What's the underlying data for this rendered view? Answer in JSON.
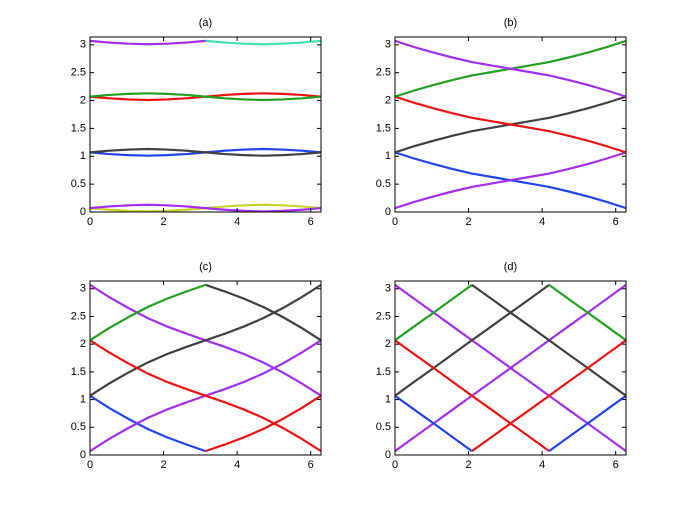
{
  "chart_data": [
    {
      "type": "line",
      "title": "(a)",
      "x": [
        0,
        0.52,
        1.05,
        1.57,
        2.09,
        2.62,
        3.14,
        3.67,
        4.19,
        4.71,
        5.24,
        5.76,
        6.28
      ],
      "xlim": [
        0,
        6.28
      ],
      "xticks": [
        0,
        2,
        4,
        6
      ],
      "ylim": [
        0,
        3.14
      ],
      "yticks": [
        0,
        0.5,
        1,
        1.5,
        2,
        2.5,
        3
      ],
      "series": [
        {
          "color": "#c8d42c",
          "values": [
            0.07,
            0.04,
            0.02,
            0.01,
            0.02,
            0.04,
            0.07,
            0.1,
            0.12,
            0.13,
            0.12,
            0.1,
            0.07
          ]
        },
        {
          "color": "#a030ee",
          "values": [
            0.07,
            0.1,
            0.12,
            0.13,
            0.12,
            0.1,
            0.07,
            0.04,
            0.02,
            0.01,
            0.02,
            0.04,
            0.07
          ]
        },
        {
          "color": "#2244ee",
          "values": [
            1.07,
            1.04,
            1.02,
            1.01,
            1.02,
            1.04,
            1.07,
            1.1,
            1.12,
            1.13,
            1.12,
            1.1,
            1.07
          ]
        },
        {
          "color": "#404040",
          "values": [
            1.07,
            1.1,
            1.12,
            1.13,
            1.12,
            1.1,
            1.07,
            1.04,
            1.02,
            1.01,
            1.02,
            1.04,
            1.07
          ]
        },
        {
          "color": "#ee1111",
          "values": [
            2.07,
            2.04,
            2.02,
            2.01,
            2.02,
            2.04,
            2.07,
            2.1,
            2.12,
            2.13,
            2.12,
            2.1,
            2.07
          ]
        },
        {
          "color": "#22a022",
          "values": [
            2.07,
            2.1,
            2.12,
            2.13,
            2.12,
            2.1,
            2.07,
            2.04,
            2.02,
            2.01,
            2.02,
            2.04,
            2.07
          ]
        },
        {
          "color": "#a030ee",
          "values": [
            3.07,
            3.04,
            3.02,
            3.01,
            3.02,
            3.04,
            3.07,
            null,
            null,
            null,
            null,
            null,
            null
          ]
        },
        {
          "color": "#40e0b0",
          "values": [
            null,
            null,
            null,
            null,
            null,
            null,
            3.07,
            3.04,
            3.02,
            3.01,
            3.02,
            3.04,
            3.07
          ]
        }
      ]
    },
    {
      "type": "line",
      "title": "(b)",
      "x": [
        0,
        0.52,
        1.05,
        1.57,
        2.09,
        2.62,
        3.14,
        3.67,
        4.19,
        4.71,
        5.24,
        5.76,
        6.28
      ],
      "xlim": [
        0,
        6.28
      ],
      "xticks": [
        0,
        2,
        4,
        6
      ],
      "ylim": [
        0,
        3.14
      ],
      "yticks": [
        0,
        0.5,
        1,
        1.5,
        2,
        2.5,
        3
      ],
      "series": [
        {
          "color": "#2244ee",
          "values": [
            1.07,
            0.96,
            0.86,
            0.77,
            0.69,
            0.63,
            0.57,
            0.51,
            0.45,
            0.37,
            0.28,
            0.18,
            0.07
          ]
        },
        {
          "color": "#a030ee",
          "values": [
            0.07,
            0.18,
            0.28,
            0.37,
            0.45,
            0.51,
            0.57,
            0.63,
            0.69,
            0.77,
            0.86,
            0.96,
            1.07
          ]
        },
        {
          "color": "#404040",
          "values": [
            1.07,
            1.18,
            1.28,
            1.37,
            1.45,
            1.51,
            1.57,
            1.63,
            1.69,
            1.77,
            1.86,
            1.96,
            2.07
          ]
        },
        {
          "color": "#ee1111",
          "values": [
            2.07,
            1.96,
            1.86,
            1.77,
            1.69,
            1.63,
            1.57,
            1.51,
            1.45,
            1.37,
            1.28,
            1.18,
            1.07
          ]
        },
        {
          "color": "#22a022",
          "values": [
            2.07,
            2.18,
            2.28,
            2.37,
            2.45,
            2.51,
            2.57,
            2.63,
            2.69,
            2.77,
            2.86,
            2.96,
            3.07
          ]
        },
        {
          "color": "#a030ee",
          "values": [
            3.07,
            2.96,
            2.86,
            2.77,
            2.69,
            2.63,
            2.57,
            2.51,
            2.45,
            2.37,
            2.28,
            2.18,
            2.07
          ]
        }
      ]
    },
    {
      "type": "line",
      "title": "(c)",
      "x": [
        0,
        0.52,
        1.05,
        1.57,
        2.09,
        2.62,
        3.14,
        3.67,
        4.19,
        4.71,
        5.24,
        5.76,
        6.28
      ],
      "xlim": [
        0,
        6.28
      ],
      "xticks": [
        0,
        2,
        4,
        6
      ],
      "ylim": [
        0,
        3.14
      ],
      "yticks": [
        0,
        0.5,
        1,
        1.5,
        2,
        2.5,
        3
      ],
      "series": [
        {
          "color": "#2244ee",
          "values": [
            1.07,
            0.85,
            0.65,
            0.47,
            0.32,
            0.19,
            0.07,
            null,
            null,
            null,
            null,
            null,
            null
          ]
        },
        {
          "color": "#ee1111",
          "values": [
            null,
            null,
            null,
            null,
            null,
            null,
            0.07,
            0.19,
            0.32,
            0.47,
            0.65,
            0.85,
            1.07
          ]
        },
        {
          "color": "#a030ee",
          "values": [
            0.07,
            0.29,
            0.49,
            0.67,
            0.82,
            0.95,
            1.07,
            1.19,
            1.32,
            1.47,
            1.65,
            1.85,
            2.07
          ]
        },
        {
          "color": "#a030ee",
          "values": [
            3.07,
            2.85,
            2.65,
            2.47,
            2.32,
            2.19,
            2.07,
            1.95,
            1.82,
            1.67,
            1.49,
            1.29,
            1.07
          ]
        },
        {
          "color": "#404040",
          "values": [
            1.07,
            1.29,
            1.49,
            1.67,
            1.82,
            1.95,
            2.07,
            2.19,
            2.32,
            2.47,
            2.65,
            2.85,
            3.07
          ]
        },
        {
          "color": "#ee1111",
          "values": [
            2.07,
            1.85,
            1.65,
            1.47,
            1.32,
            1.19,
            1.07,
            0.95,
            0.82,
            0.67,
            0.49,
            0.29,
            0.07
          ]
        },
        {
          "color": "#22a022",
          "values": [
            2.07,
            2.29,
            2.49,
            2.67,
            2.82,
            2.95,
            3.07,
            null,
            null,
            null,
            null,
            null,
            null
          ]
        },
        {
          "color": "#404040",
          "values": [
            null,
            null,
            null,
            null,
            null,
            null,
            3.07,
            2.95,
            2.82,
            2.67,
            2.49,
            2.29,
            2.07
          ]
        }
      ]
    },
    {
      "type": "line",
      "title": "(d)",
      "x": [
        0,
        0.52,
        1.05,
        1.57,
        2.09,
        2.62,
        3.14,
        3.67,
        4.19,
        4.71,
        5.24,
        5.76,
        6.28
      ],
      "xlim": [
        0,
        6.28
      ],
      "xticks": [
        0,
        2,
        4,
        6
      ],
      "ylim": [
        0,
        3.14
      ],
      "yticks": [
        0,
        0.5,
        1,
        1.5,
        2,
        2.5,
        3
      ],
      "series": [
        {
          "color": "#a030ee",
          "values": [
            3.07,
            2.82,
            2.57,
            2.32,
            2.07,
            1.82,
            1.57,
            1.32,
            1.07,
            0.82,
            0.57,
            0.32,
            0.07
          ]
        },
        {
          "color": "#a030ee",
          "values": [
            0.07,
            0.32,
            0.57,
            0.82,
            1.07,
            1.32,
            1.57,
            1.82,
            2.07,
            2.32,
            2.57,
            2.82,
            3.07
          ]
        },
        {
          "color": "#404040",
          "values": [
            1.07,
            1.32,
            1.57,
            1.82,
            2.07,
            2.32,
            2.57,
            2.82,
            3.07,
            null,
            null,
            null,
            null
          ]
        },
        {
          "color": "#22a022",
          "values": [
            null,
            null,
            null,
            null,
            null,
            null,
            null,
            null,
            3.07,
            2.82,
            2.57,
            2.32,
            2.07
          ]
        },
        {
          "color": "#ee1111",
          "values": [
            2.07,
            1.82,
            1.57,
            1.32,
            1.07,
            0.82,
            0.57,
            0.32,
            0.07,
            null,
            null,
            null,
            null
          ]
        },
        {
          "color": "#2244ee",
          "values": [
            null,
            null,
            null,
            null,
            null,
            null,
            null,
            null,
            0.07,
            0.32,
            0.57,
            0.82,
            1.07
          ]
        },
        {
          "color": "#22a022",
          "values": [
            2.07,
            2.32,
            2.57,
            2.82,
            3.07,
            null,
            null,
            null,
            null,
            null,
            null,
            null,
            null
          ]
        },
        {
          "color": "#404040",
          "values": [
            null,
            null,
            null,
            null,
            3.07,
            2.82,
            2.57,
            2.32,
            2.07,
            1.82,
            1.57,
            1.32,
            1.07
          ]
        },
        {
          "color": "#2244ee",
          "values": [
            1.07,
            0.82,
            0.57,
            0.32,
            0.07,
            null,
            null,
            null,
            null,
            null,
            null,
            null,
            null
          ]
        },
        {
          "color": "#ee1111",
          "values": [
            null,
            null,
            null,
            null,
            0.07,
            0.32,
            0.57,
            0.82,
            1.07,
            1.32,
            1.57,
            1.82,
            2.07
          ]
        }
      ]
    }
  ]
}
